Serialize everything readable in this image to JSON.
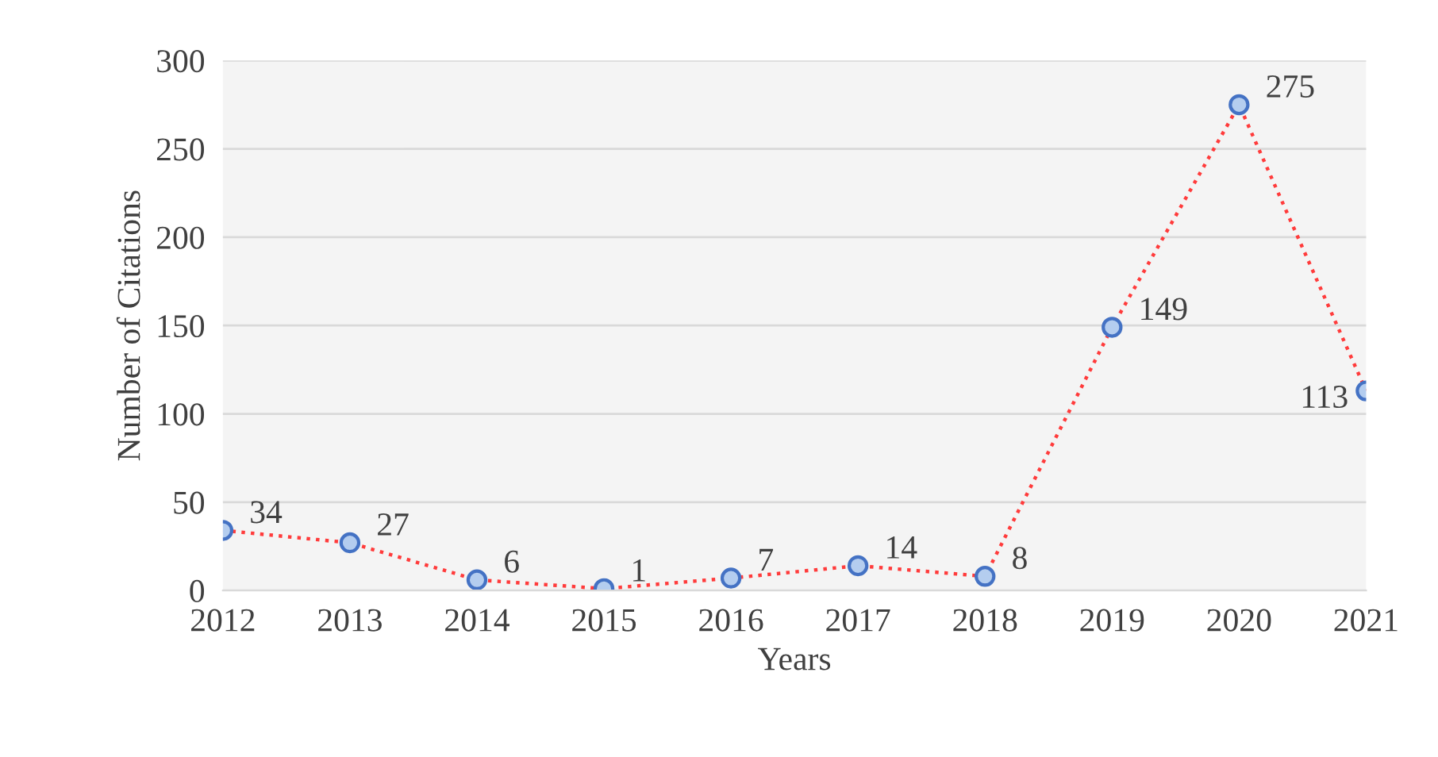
{
  "chart_data": {
    "type": "line",
    "xlabel": "Years",
    "ylabel": "Number of Citations",
    "categories": [
      "2012",
      "2013",
      "2014",
      "2015",
      "2016",
      "2017",
      "2018",
      "2019",
      "2020",
      "2021"
    ],
    "series": [
      {
        "color": "#ff3b3b",
        "values": [
          34,
          27,
          6,
          1,
          7,
          14,
          8,
          149,
          275,
          113
        ]
      }
    ],
    "ylim": [
      0,
      300
    ],
    "yticks": [
      0,
      50,
      100,
      150,
      200,
      250,
      300
    ],
    "grid": "y",
    "marker": "circle",
    "line_style": "dotted",
    "data_labels": true,
    "legend": false
  }
}
